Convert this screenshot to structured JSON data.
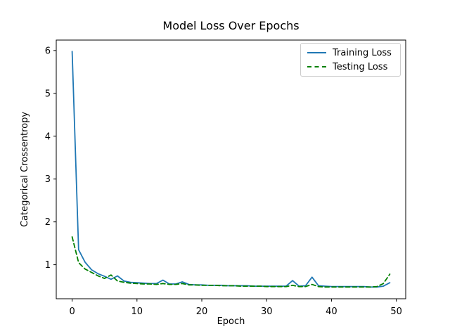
{
  "chart_data": {
    "type": "line",
    "title": "Model Loss Over Epochs",
    "xlabel": "Epoch",
    "ylabel": "Categorical Crossentropy",
    "x": [
      0,
      1,
      2,
      3,
      4,
      5,
      6,
      7,
      8,
      9,
      10,
      11,
      12,
      13,
      14,
      15,
      16,
      17,
      18,
      19,
      20,
      21,
      22,
      23,
      24,
      25,
      26,
      27,
      28,
      29,
      30,
      31,
      32,
      33,
      34,
      35,
      36,
      37,
      38,
      39,
      40,
      41,
      42,
      43,
      44,
      45,
      46,
      47,
      48,
      49
    ],
    "series": [
      {
        "name": "Training Loss",
        "color": "#1f77b4",
        "style": "solid",
        "values": [
          5.98,
          1.35,
          1.06,
          0.88,
          0.79,
          0.73,
          0.66,
          0.74,
          0.62,
          0.59,
          0.58,
          0.57,
          0.56,
          0.56,
          0.64,
          0.55,
          0.55,
          0.6,
          0.54,
          0.53,
          0.53,
          0.52,
          0.52,
          0.52,
          0.51,
          0.51,
          0.51,
          0.51,
          0.5,
          0.5,
          0.5,
          0.5,
          0.5,
          0.5,
          0.63,
          0.5,
          0.51,
          0.71,
          0.51,
          0.5,
          0.49,
          0.49,
          0.49,
          0.49,
          0.49,
          0.49,
          0.48,
          0.48,
          0.5,
          0.58
        ]
      },
      {
        "name": "Testing Loss",
        "color": "#008000",
        "style": "dashed",
        "values": [
          1.65,
          1.05,
          0.9,
          0.82,
          0.74,
          0.68,
          0.76,
          0.62,
          0.59,
          0.57,
          0.56,
          0.55,
          0.55,
          0.54,
          0.56,
          0.54,
          0.54,
          0.56,
          0.53,
          0.53,
          0.52,
          0.52,
          0.52,
          0.51,
          0.51,
          0.51,
          0.5,
          0.5,
          0.5,
          0.5,
          0.49,
          0.49,
          0.49,
          0.49,
          0.52,
          0.49,
          0.49,
          0.54,
          0.49,
          0.48,
          0.48,
          0.48,
          0.48,
          0.48,
          0.48,
          0.48,
          0.48,
          0.49,
          0.56,
          0.78
        ]
      }
    ],
    "xlim": [
      -2.45,
      51.45
    ],
    "ylim": [
      0.206,
      6.244
    ],
    "xticks": [
      0,
      10,
      20,
      30,
      40,
      50
    ],
    "yticks": [
      1,
      2,
      3,
      4,
      5,
      6
    ],
    "grid": false,
    "legend_position": "upper right"
  }
}
